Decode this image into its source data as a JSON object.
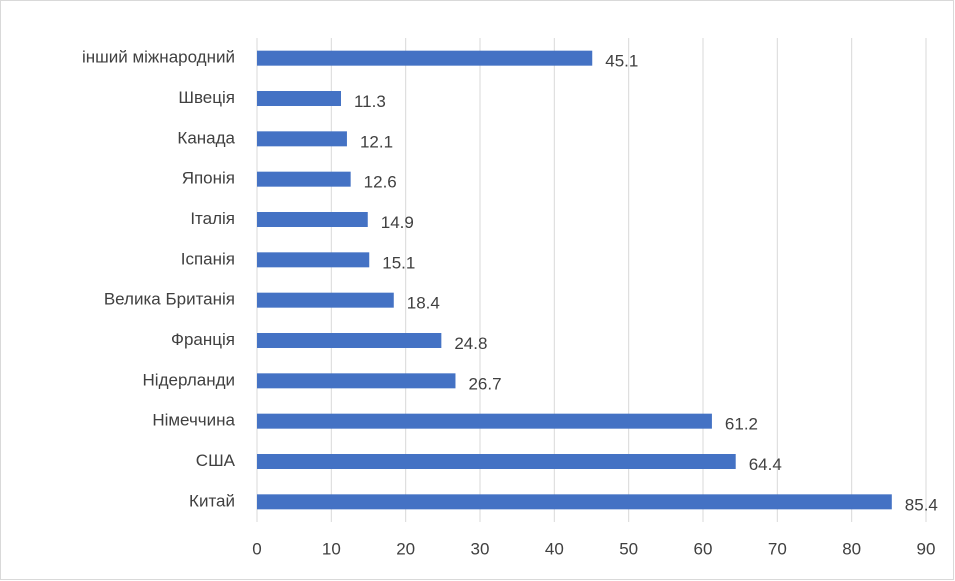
{
  "chart_data": {
    "type": "bar",
    "orientation": "horizontal",
    "categories": [
      "інший міжнародний",
      "Швеція",
      "Канада",
      "Японія",
      "Італія",
      "Іспанія",
      "Велика Британія",
      "Франція",
      "Нідерланди",
      "Німеччина",
      "США",
      "Китай"
    ],
    "values": [
      45.1,
      11.3,
      12.1,
      12.6,
      14.9,
      15.1,
      18.4,
      24.8,
      26.7,
      61.2,
      64.4,
      85.4
    ],
    "color": "#4472c4",
    "xlim": [
      0,
      90
    ],
    "xticks": [
      0,
      10,
      20,
      30,
      40,
      50,
      60,
      70,
      80,
      90
    ],
    "grid": true
  }
}
